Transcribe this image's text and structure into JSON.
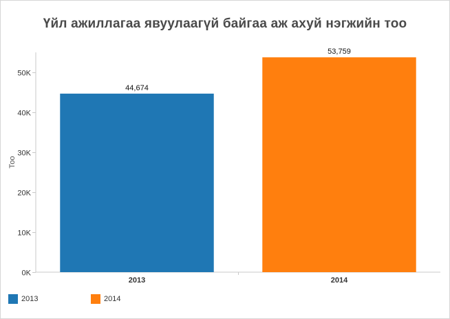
{
  "chart_data": {
    "type": "bar",
    "title": "Үйл ажиллагаа явуулаагүй байгаа аж ахуй нэгжийн тоо",
    "xlabel": "",
    "ylabel": "Тоо",
    "categories": [
      "2013",
      "2014"
    ],
    "values": [
      44674,
      53759
    ],
    "value_labels": [
      "44,674",
      "53,759"
    ],
    "colors": [
      "#1f77b4",
      "#ff7f0e"
    ],
    "ylim": [
      0,
      55000
    ],
    "yticks": [
      0,
      10000,
      20000,
      30000,
      40000,
      50000
    ],
    "ytick_labels": [
      "0K",
      "10K",
      "20K",
      "30K",
      "40K",
      "50K"
    ],
    "grid": false,
    "legend": {
      "placement": "bottom-left",
      "entries": [
        {
          "label": "2013",
          "color": "#1f77b4"
        },
        {
          "label": "2014",
          "color": "#ff7f0e"
        }
      ]
    }
  }
}
